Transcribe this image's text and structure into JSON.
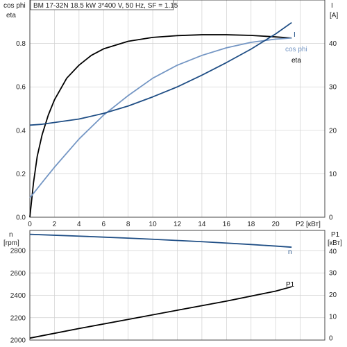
{
  "chart_data": [
    {
      "type": "line",
      "title": "BM 17-32N   18.5 kW   3*400 V, 50 Hz, SF = 1.15",
      "x_label": "P2 [кВт]",
      "x_ticks": [
        "0",
        "2",
        "4",
        "6",
        "8",
        "10",
        "12",
        "14",
        "16",
        "18",
        "20"
      ],
      "xlim": [
        0,
        24
      ],
      "left_axis": {
        "label_top": "cos phi",
        "label_bottom": "eta",
        "ticks": [
          "0.0",
          "0.2",
          "0.4",
          "0.6",
          "0.8"
        ],
        "ylim": [
          0,
          1.0
        ]
      },
      "right_axis": {
        "label_top": "I",
        "label_bottom": "[A]",
        "ticks": [
          "0",
          "10",
          "20",
          "30",
          "40"
        ],
        "ylim": [
          0,
          50
        ]
      },
      "grid": true,
      "series": [
        {
          "name": "eta",
          "axis": "left",
          "color": "#000000",
          "x": [
            0,
            0.3,
            0.6,
            1,
            1.5,
            2,
            3,
            4,
            5,
            6,
            8,
            10,
            12,
            14,
            16,
            18,
            20,
            21.3
          ],
          "y": [
            0,
            0.16,
            0.28,
            0.38,
            0.47,
            0.54,
            0.64,
            0.7,
            0.745,
            0.775,
            0.81,
            0.828,
            0.836,
            0.84,
            0.84,
            0.837,
            0.83,
            0.825
          ]
        },
        {
          "name": "cos phi",
          "axis": "left",
          "color": "#7496c4",
          "x": [
            0,
            0.3,
            1,
            2,
            4,
            6,
            8,
            10,
            12,
            14,
            16,
            18,
            20,
            21.3
          ],
          "y": [
            0.09,
            0.11,
            0.16,
            0.23,
            0.36,
            0.47,
            0.56,
            0.64,
            0.7,
            0.745,
            0.78,
            0.805,
            0.82,
            0.825
          ]
        },
        {
          "name": "I",
          "axis": "right",
          "color": "#1f4e85",
          "x": [
            0,
            1,
            2,
            4,
            6,
            8,
            10,
            12,
            14,
            16,
            18,
            20,
            21.3
          ],
          "y": [
            21.2,
            21.4,
            21.8,
            22.6,
            23.9,
            25.6,
            27.7,
            30.0,
            32.7,
            35.6,
            38.7,
            42.2,
            44.8
          ]
        }
      ]
    },
    {
      "type": "line",
      "xlim": [
        0,
        24
      ],
      "left_axis": {
        "label_top": "n",
        "label_bottom": "[rpm]",
        "ticks": [
          "2000",
          "2200",
          "2400",
          "2600",
          "2800"
        ],
        "ylim": [
          2000,
          2980
        ]
      },
      "right_axis": {
        "label_top": "P1",
        "label_bottom": "[кВт]",
        "ticks": [
          "0",
          "10",
          "20",
          "30",
          "40"
        ],
        "ylim": [
          -0.9,
          49.5
        ]
      },
      "grid": true,
      "series": [
        {
          "name": "n",
          "axis": "left",
          "color": "#1f4e85",
          "x": [
            0,
            2,
            4,
            6,
            8,
            10,
            12,
            14,
            16,
            18,
            20,
            21.3
          ],
          "y": [
            2945,
            2937,
            2929,
            2920,
            2911,
            2901,
            2890,
            2879,
            2867,
            2854,
            2840,
            2830
          ]
        },
        {
          "name": "P1",
          "axis": "right",
          "color": "#000000",
          "x": [
            0,
            4,
            8,
            12,
            16,
            20,
            21.3
          ],
          "y": [
            0,
            4.4,
            8.6,
            12.8,
            17.0,
            21.6,
            23.6
          ]
        }
      ]
    }
  ]
}
